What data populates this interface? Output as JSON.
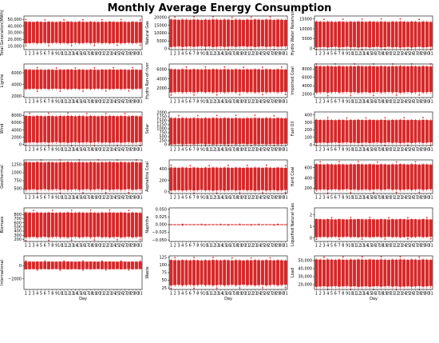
{
  "title": "Monthly Average Energy Consumption",
  "colors": {
    "box": "#d62728",
    "frame": "#000000",
    "background": "#ffffff"
  },
  "chart_data": {
    "type": "box",
    "layout": {
      "rows": 6,
      "cols": 3
    },
    "x_categories": [
      "1",
      "2",
      "3",
      "4",
      "5",
      "6",
      "7",
      "8",
      "9",
      "10",
      "11",
      "12",
      "13",
      "14",
      "15",
      "16",
      "17",
      "18",
      "19",
      "20",
      "21",
      "22",
      "23",
      "24",
      "25",
      "26",
      "27",
      "28",
      "29",
      "30",
      "31"
    ],
    "panels": [
      {
        "ylabel": "Total Generation(MWh)",
        "yticks": [
          10000,
          20000,
          30000,
          40000,
          50000
        ],
        "ytick_labels": [
          "10,000",
          "20,000",
          "30,000",
          "40,000",
          "50,000"
        ],
        "ylim": [
          5000,
          55000
        ],
        "q1": 15000,
        "q3": 46000,
        "xlabel": ""
      },
      {
        "ylabel": "Natural Gas",
        "yticks": [
          0,
          5000,
          10000,
          15000,
          20000
        ],
        "ytick_labels": [
          "0",
          "5000",
          "10000",
          "15000",
          "20000"
        ],
        "ylim": [
          -500,
          21000
        ],
        "q1": 1500,
        "q3": 18500,
        "xlabel": ""
      },
      {
        "ylabel": "Hydro Water Reservoir",
        "yticks": [
          0,
          5000,
          10000,
          15000
        ],
        "ytick_labels": [
          "0",
          "5000",
          "10000",
          "15000"
        ],
        "ylim": [
          -500,
          16500
        ],
        "q1": 800,
        "q3": 13500,
        "xlabel": ""
      },
      {
        "ylabel": "Lignite",
        "yticks": [
          2000,
          4000,
          6000
        ],
        "ytick_labels": [
          "2000",
          "4000",
          "6000"
        ],
        "ylim": [
          1800,
          7500
        ],
        "q1": 3300,
        "q3": 6500,
        "xlabel": ""
      },
      {
        "ylabel": "Hydro Run-of-river",
        "yticks": [
          2000,
          4000,
          6000
        ],
        "ytick_labels": [
          "2000",
          "4000",
          "6000"
        ],
        "ylim": [
          0,
          7200
        ],
        "q1": 1200,
        "q3": 6000,
        "xlabel": ""
      },
      {
        "ylabel": "Imported Coal",
        "yticks": [
          2000,
          4000,
          6000,
          8000
        ],
        "ytick_labels": [
          "2000",
          "4000",
          "6000",
          "8000"
        ],
        "ylim": [
          1200,
          9200
        ],
        "q1": 2500,
        "q3": 8600,
        "xlabel": ""
      },
      {
        "ylabel": "Wind",
        "yticks": [
          0,
          2000,
          4000,
          6000,
          8000
        ],
        "ytick_labels": [
          "0",
          "2000",
          "4000",
          "6000",
          "8000"
        ],
        "ylim": [
          -300,
          9000
        ],
        "q1": 600,
        "q3": 7800,
        "xlabel": ""
      },
      {
        "ylabel": "Solar",
        "yticks": [
          0,
          250,
          500,
          750,
          1000,
          1250,
          1500,
          1750,
          2000
        ],
        "ytick_labels": [
          "0",
          "250",
          "500",
          "750",
          "1000",
          "1250",
          "1500",
          "1750",
          "2000"
        ],
        "ylim": [
          -50,
          2050
        ],
        "q1": 50,
        "q3": 1650,
        "xlabel": ""
      },
      {
        "ylabel": "Fuel Oil",
        "yticks": [
          0,
          100,
          200,
          300,
          400
        ],
        "ytick_labels": [
          "0",
          "100",
          "200",
          "300",
          "400"
        ],
        "ylim": [
          -10,
          440
        ],
        "q1": 30,
        "q3": 330,
        "xlabel": ""
      },
      {
        "ylabel": "Geothermal",
        "yticks": [
          500,
          750,
          1000,
          1250
        ],
        "ytick_labels": [
          "500",
          "750",
          "1000",
          "1250"
        ],
        "ylim": [
          350,
          1400
        ],
        "q1": 480,
        "q3": 1320,
        "xlabel": ""
      },
      {
        "ylabel": "Asphaltite Coal",
        "yticks": [
          0,
          200,
          400
        ],
        "ytick_labels": [
          "0",
          "200",
          "400"
        ],
        "ylim": [
          -30,
          560
        ],
        "q1": 30,
        "q3": 420,
        "xlabel": ""
      },
      {
        "ylabel": "Hard Coal",
        "yticks": [
          200,
          400,
          600
        ],
        "ytick_labels": [
          "200",
          "400",
          "600"
        ],
        "ylim": [
          100,
          750
        ],
        "q1": 180,
        "q3": 660,
        "xlabel": ""
      },
      {
        "ylabel": "Biomass",
        "yticks": [
          200,
          300,
          400,
          500,
          600,
          700,
          800
        ],
        "ytick_labels": [
          "200",
          "300",
          "400",
          "500",
          "600",
          "700",
          "800"
        ],
        "ylim": [
          150,
          960
        ],
        "q1": 260,
        "q3": 840,
        "xlabel": ""
      },
      {
        "ylabel": "Naphtha",
        "yticks": [
          -0.05,
          -0.025,
          0.0,
          0.025,
          0.05
        ],
        "ytick_labels": [
          "−0.050",
          "−0.025",
          "0.000",
          "0.025",
          "0.050"
        ],
        "ylim": [
          -0.055,
          0.055
        ],
        "q1": -0.001,
        "q3": 0.001,
        "xlabel": ""
      },
      {
        "ylabel": "Liquefied Natural Gas",
        "yticks": [
          0,
          1,
          2
        ],
        "ytick_labels": [
          "0",
          "1",
          "2"
        ],
        "ylim": [
          -0.3,
          2.6
        ],
        "q1": 0.1,
        "q3": 1.6,
        "xlabel": ""
      },
      {
        "ylabel": "International",
        "yticks": [
          -2000,
          0
        ],
        "ytick_labels": [
          "−2000",
          "0"
        ],
        "ylim": [
          -3600,
          1500
        ],
        "q1": -500,
        "q3": 600,
        "xlabel": "Day"
      },
      {
        "ylabel": "Waste",
        "yticks": [
          25,
          50,
          75,
          100,
          125
        ],
        "ytick_labels": [
          "25",
          "50",
          "75",
          "100",
          "125"
        ],
        "ylim": [
          20,
          130
        ],
        "q1": 35,
        "q3": 115,
        "xlabel": "Day"
      },
      {
        "ylabel": "Load",
        "yticks": [
          20000,
          30000,
          40000,
          50000
        ],
        "ytick_labels": [
          "20,000",
          "30,000",
          "40,000",
          "50,000"
        ],
        "ylim": [
          14000,
          56000
        ],
        "q1": 18000,
        "q3": 51000,
        "xlabel": "Day"
      }
    ]
  }
}
